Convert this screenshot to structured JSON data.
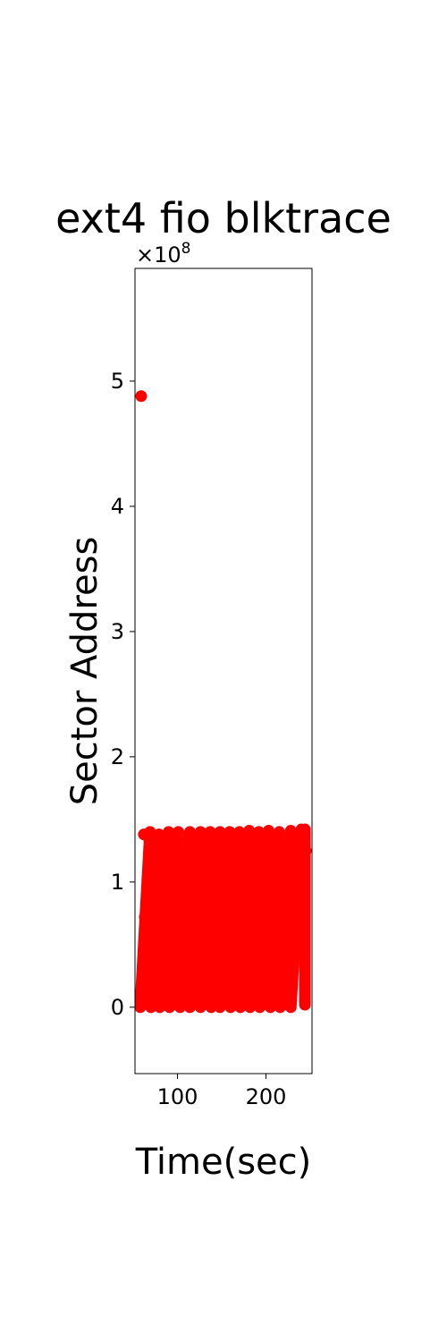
{
  "chart_data": {
    "type": "scatter",
    "title": "ext4 fio blktrace",
    "xlabel": "Time(sec)",
    "ylabel": "Sector Address",
    "y_offset_label_base": "×10",
    "y_offset_label_exp": "8",
    "xlim": [
      52,
      252
    ],
    "ylim": [
      -0.53,
      5.9
    ],
    "x_ticks": [
      100,
      200
    ],
    "x_tick_labels": [
      "100",
      "200"
    ],
    "y_ticks": [
      0,
      1,
      2,
      3,
      4,
      5
    ],
    "y_tick_labels": [
      "0",
      "1",
      "2",
      "3",
      "4",
      "5"
    ],
    "grid": false,
    "marker_color": "#ff0000",
    "series": [
      {
        "outliers": [
          [
            59,
            4.88
          ]
        ],
        "ramps": [
          [
            58,
            0.0,
            69,
            1.4
          ],
          [
            70,
            0.0,
            79,
            1.38
          ],
          [
            80,
            0.0,
            90,
            1.4
          ],
          [
            91,
            0.0,
            101,
            1.4
          ],
          [
            103,
            0.0,
            114,
            1.4
          ],
          [
            114,
            0.0,
            126,
            1.4
          ],
          [
            126,
            0.0,
            137,
            1.4
          ],
          [
            138,
            0.0,
            148,
            1.4
          ],
          [
            148,
            0.0,
            159,
            1.4
          ],
          [
            160,
            0.0,
            170,
            1.4
          ],
          [
            171,
            0.0,
            181,
            1.41
          ],
          [
            182,
            0.0,
            192,
            1.4
          ],
          [
            193,
            0.0,
            203,
            1.41
          ],
          [
            205,
            0.0,
            215,
            1.4
          ],
          [
            216,
            0.0,
            228,
            1.41
          ],
          [
            228,
            0.0,
            240,
            1.42
          ]
        ],
        "horizontal_band": [
          63,
          0.72,
          235,
          0.72
        ],
        "scattered_points": [
          [
            62,
            0.45
          ],
          [
            64,
            0.62
          ],
          [
            66,
            0.28
          ],
          [
            72,
            0.55
          ],
          [
            74,
            0.4
          ],
          [
            83,
            0.52
          ],
          [
            85,
            0.35
          ],
          [
            95,
            0.55
          ],
          [
            106,
            0.38
          ],
          [
            108,
            0.52
          ],
          [
            117,
            0.55
          ],
          [
            120,
            0.18
          ],
          [
            128,
            0.4
          ],
          [
            140,
            0.38
          ],
          [
            142,
            0.55
          ],
          [
            150,
            0.18
          ],
          [
            152,
            0.52
          ],
          [
            162,
            0.38
          ],
          [
            172,
            0.18
          ],
          [
            174,
            0.52
          ],
          [
            184,
            0.38
          ],
          [
            196,
            0.52
          ],
          [
            198,
            0.18
          ],
          [
            208,
            0.38
          ],
          [
            210,
            0.18
          ],
          [
            220,
            0.18
          ],
          [
            222,
            0.52
          ],
          [
            226,
            0.4
          ],
          [
            62,
            1.38
          ],
          [
            68,
            1.34
          ],
          [
            78,
            1.36
          ],
          [
            98,
            1.36
          ],
          [
            120,
            1.33
          ],
          [
            140,
            1.36
          ],
          [
            162,
            1.38
          ],
          [
            184,
            1.38
          ],
          [
            206,
            1.38
          ],
          [
            233,
            1.38
          ]
        ],
        "tail_column": [
          244,
          0.02,
          244,
          1.4
        ],
        "tail_points": [
          [
            244,
            0.05
          ],
          [
            244,
            0.18
          ],
          [
            244,
            1.42
          ],
          [
            245,
            1.25
          ],
          [
            243,
            1.2
          ],
          [
            244,
            0.4
          ]
        ]
      }
    ]
  }
}
